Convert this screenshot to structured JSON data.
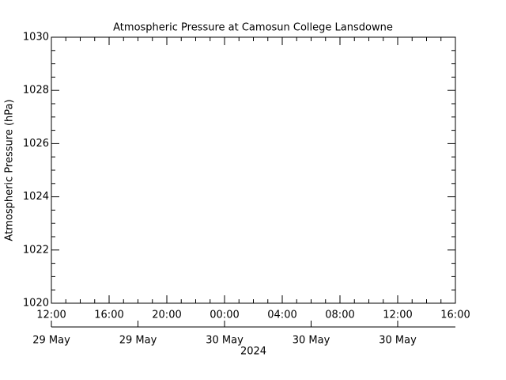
{
  "chart_data": {
    "type": "line",
    "title": "Atmospheric Pressure at Camosun College Lansdowne",
    "ylabel": "Atmospheric Pressure (hPa)",
    "ylim": [
      1020,
      1030
    ],
    "yticks": [
      1020,
      1022,
      1024,
      1026,
      1028,
      1030
    ],
    "xlim": [
      "2024-05-29T12:00",
      "2024-05-30T16:00"
    ],
    "xticks": [
      {
        "value": "2024-05-29T12:00",
        "label": "12:00"
      },
      {
        "value": "2024-05-29T16:00",
        "label": "16:00"
      },
      {
        "value": "2024-05-29T20:00",
        "label": "20:00"
      },
      {
        "value": "2024-05-30T00:00",
        "label": "00:00"
      },
      {
        "value": "2024-05-30T04:00",
        "label": "04:00"
      },
      {
        "value": "2024-05-30T08:00",
        "label": "08:00"
      },
      {
        "value": "2024-05-30T12:00",
        "label": "12:00"
      },
      {
        "value": "2024-05-30T16:00",
        "label": "16:00"
      }
    ],
    "x2ticks": [
      {
        "value": "2024-05-29T12:00",
        "label": "29 May"
      },
      {
        "value": "2024-05-29T18:00",
        "label": "29 May"
      },
      {
        "value": "2024-05-30T00:00",
        "label": "30 May"
      },
      {
        "value": "2024-05-30T06:00",
        "label": "30 May"
      },
      {
        "value": "2024-05-30T12:00",
        "label": "30 May"
      }
    ],
    "x2label": "2024"
  }
}
